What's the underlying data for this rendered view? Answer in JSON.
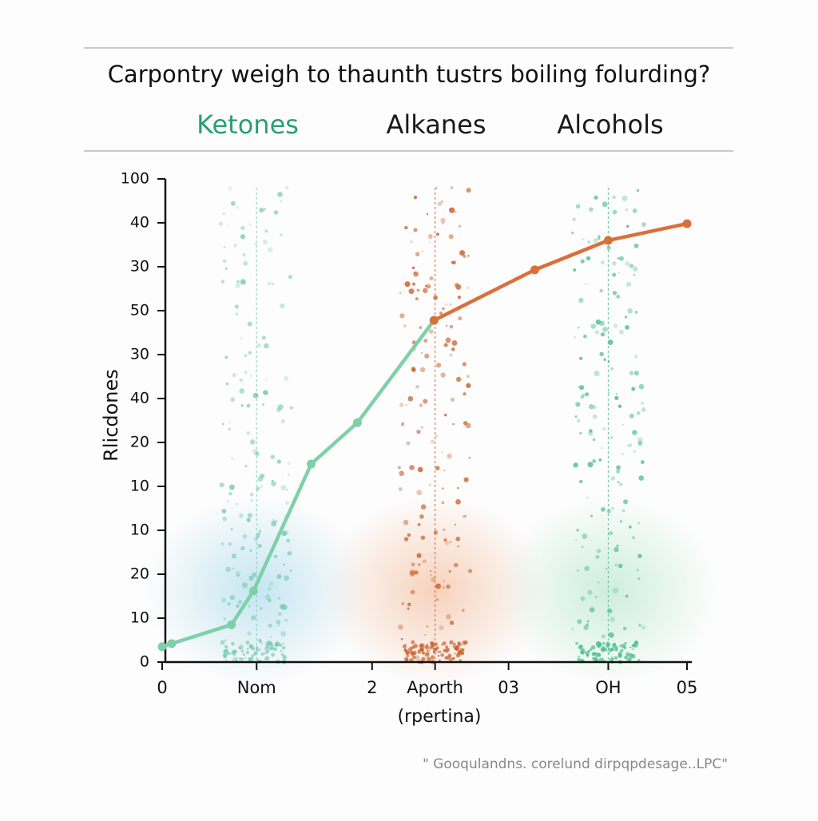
{
  "chart_data": {
    "type": "line",
    "title": "Carpontry weigh to thaunth tustrs boiling folurding?",
    "legend_labels": [
      {
        "text": "Ketones",
        "color": "#2a9e74"
      },
      {
        "text": "Alkanes",
        "color": "#1a1a1a"
      },
      {
        "text": "Alcohols",
        "color": "#1a1a1a"
      }
    ],
    "y_label": "Rlicdones",
    "x_label": "(rpertina)",
    "footer": "\" Gooqulandns. corelund dirpqpdesage..LPC\"",
    "xlim": [
      0,
      5
    ],
    "ylim": [
      0,
      11
    ],
    "xticks": [
      0,
      {
        "value": 0.9,
        "label": "Nom"
      },
      2,
      {
        "value": 2.6,
        "label": "Aporth"
      },
      {
        "value": 3.3,
        "label": "03"
      },
      {
        "value": 4.25,
        "label": "OH"
      },
      {
        "value": 5,
        "label": "05"
      }
    ],
    "yticks": [
      {
        "value": 0,
        "label": "0"
      },
      {
        "value": 1,
        "label": "10"
      },
      {
        "value": 2,
        "label": "20"
      },
      {
        "value": 3,
        "label": "10"
      },
      {
        "value": 4,
        "label": "10"
      },
      {
        "value": 5,
        "label": "20"
      },
      {
        "value": 6,
        "label": "40"
      },
      {
        "value": 7,
        "label": "30"
      },
      {
        "value": 8,
        "label": "50"
      },
      {
        "value": 9,
        "label": "30"
      },
      {
        "value": 10,
        "label": "40"
      },
      {
        "value": 11,
        "label": "100"
      }
    ],
    "series": [
      {
        "color": "#7fd0a8",
        "x": [
          0,
          0.09,
          0.66,
          0.87,
          1.42,
          1.86,
          2.59
        ],
        "values": [
          0.35,
          0.42,
          0.85,
          1.62,
          4.51,
          5.45,
          7.78
        ]
      },
      {
        "color": "#d9703a",
        "x": [
          2.59,
          3.55,
          4.25,
          5
        ],
        "values": [
          7.78,
          8.93,
          9.6,
          9.98
        ]
      }
    ],
    "clouds": [
      {
        "x": 0.9,
        "color": "#7ccbb4",
        "glow": "#bfe3f0"
      },
      {
        "x": 2.6,
        "color": "#c8612c",
        "glow": "#f6cdb5"
      },
      {
        "x": 4.25,
        "color": "#4dbb93",
        "glow": "#c9ecd9"
      }
    ]
  }
}
